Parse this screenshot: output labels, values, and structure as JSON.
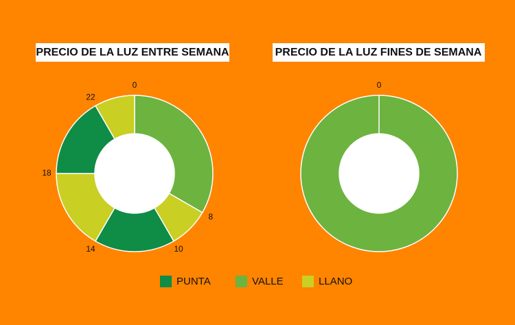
{
  "chart_data": [
    {
      "type": "donut",
      "title": "PRECIO DE LA LUZ ENTRE SEMANA",
      "values": [
        8,
        2,
        4,
        4,
        4,
        2
      ],
      "colors": [
        "#6db33f",
        "#c9cf23",
        "#0f8c46",
        "#c9cf23",
        "#0f8c46",
        "#c9cf23"
      ],
      "lim": [
        0,
        24
      ],
      "ticks": [
        0,
        8,
        10,
        14,
        18,
        22
      ]
    },
    {
      "type": "donut",
      "title": "PRECIO DE LA LUZ FINES DE SEMANA",
      "values": [
        24
      ],
      "colors": [
        "#6db33f"
      ],
      "lim": [
        0,
        24
      ],
      "ticks": [
        0
      ]
    }
  ],
  "legend": {
    "items": [
      "PUNTA",
      "VALLE",
      "LLANO"
    ],
    "colors": [
      "#0f8c46",
      "#6db33f",
      "#c9cf23"
    ]
  }
}
